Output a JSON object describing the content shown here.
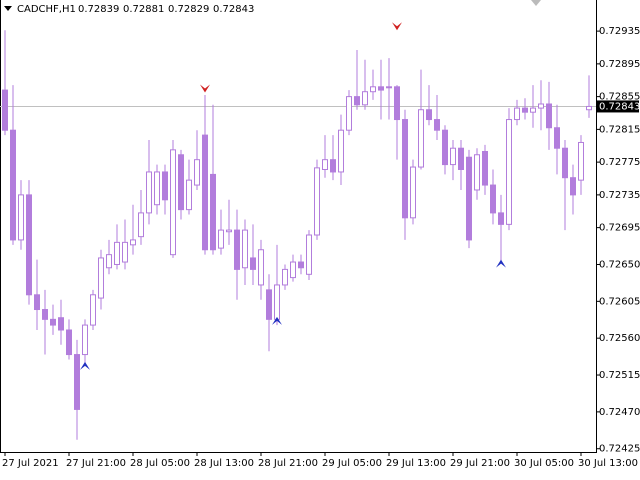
{
  "chart_data": {
    "type": "candlestick",
    "title": "CADCHF,H1",
    "header_values": [
      0.72839,
      0.72881,
      0.72829,
      0.72843
    ],
    "categories": [
      "27 Jul 2021",
      null,
      null,
      null,
      null,
      null,
      null,
      null,
      "27 Jul 21:00",
      null,
      null,
      null,
      null,
      null,
      null,
      null,
      "28 Jul 05:00",
      null,
      null,
      null,
      null,
      null,
      null,
      null,
      "28 Jul 13:00",
      null,
      null,
      null,
      null,
      null,
      null,
      null,
      "28 Jul 21:00",
      null,
      null,
      null,
      null,
      null,
      null,
      null,
      "29 Jul 05:00",
      null,
      null,
      null,
      null,
      null,
      null,
      null,
      "29 Jul 13:00",
      null,
      null,
      null,
      null,
      null,
      null,
      null,
      "29 Jul 21:00",
      null,
      null,
      null,
      null,
      null,
      null,
      null,
      "30 Jul 05:00",
      null,
      null,
      null,
      null,
      null,
      null,
      null,
      "30 Jul 13:00",
      null
    ],
    "open": [
      0.72863,
      0.72814,
      0.7268,
      0.72735,
      0.72613,
      0.72595,
      0.72583,
      0.72585,
      0.7257,
      0.7254,
      0.7254,
      0.72576,
      0.72609,
      0.72646,
      0.7265,
      0.72653,
      0.72674,
      0.72684,
      0.72713,
      0.72723,
      0.72763,
      0.72662,
      0.72784,
      0.72717,
      0.72747,
      0.72808,
      0.7276,
      0.7267,
      0.7269,
      0.72692,
      0.72646,
      0.72658,
      0.72625,
      0.72619,
      0.72583,
      0.72625,
      0.72634,
      0.72653,
      0.72638,
      0.72686,
      0.72766,
      0.72778,
      0.72763,
      0.72814,
      0.72855,
      0.72845,
      0.72861,
      0.72867,
      0.72866,
      0.72867,
      0.72827,
      0.72707,
      0.72769,
      0.72839,
      0.72827,
      0.72814,
      0.72772,
      0.72792,
      0.72781,
      0.72741,
      0.72788,
      0.72747,
      0.72713,
      0.72699,
      0.72827,
      0.72841,
      0.72836,
      0.72841,
      0.72846,
      0.72817,
      0.72792,
      0.72756,
      0.72753,
      0.72839
    ],
    "high": [
      0.72936,
      0.72869,
      0.72753,
      0.72753,
      0.72656,
      0.72619,
      0.72601,
      0.72607,
      0.72583,
      0.72558,
      0.72583,
      0.72619,
      0.72668,
      0.7268,
      0.72699,
      0.72705,
      0.72723,
      0.72741,
      0.72802,
      0.72772,
      0.72772,
      0.72802,
      0.7279,
      0.72778,
      0.72814,
      0.72857,
      0.72845,
      0.72717,
      0.72729,
      0.72717,
      0.72705,
      0.72699,
      0.7268,
      0.72638,
      0.72674,
      0.7265,
      0.72662,
      0.72662,
      0.72692,
      0.72778,
      0.72808,
      0.72808,
      0.72833,
      0.72863,
      0.72912,
      0.729,
      0.72888,
      0.729,
      0.72902,
      0.72869,
      0.72839,
      0.72778,
      0.72888,
      0.72869,
      0.72857,
      0.7282,
      0.72802,
      0.72802,
      0.7279,
      0.72792,
      0.72796,
      0.72766,
      0.72735,
      0.72841,
      0.72851,
      0.72853,
      0.72869,
      0.72875,
      0.72873,
      0.72845,
      0.72802,
      0.72772,
      0.72808,
      0.72881
    ],
    "low": [
      0.72808,
      0.72674,
      0.72668,
      0.72601,
      0.7257,
      0.7254,
      0.72564,
      0.72552,
      0.72534,
      0.72436,
      0.72528,
      0.7257,
      0.72595,
      0.72638,
      0.72644,
      0.72644,
      0.72662,
      0.72674,
      0.72699,
      0.72711,
      0.72711,
      0.72658,
      0.72705,
      0.72711,
      0.72741,
      0.72662,
      0.72662,
      0.72662,
      0.72674,
      0.72607,
      0.72625,
      0.72625,
      0.72607,
      0.72544,
      0.72576,
      0.72619,
      0.72629,
      0.72638,
      0.72631,
      0.7268,
      0.72756,
      0.72753,
      0.72747,
      0.72808,
      0.72839,
      0.72839,
      0.72851,
      0.72827,
      0.72827,
      0.72778,
      0.7268,
      0.72699,
      0.72766,
      0.7282,
      0.72802,
      0.7276,
      0.72753,
      0.72741,
      0.7267,
      0.72729,
      0.72735,
      0.72699,
      0.72653,
      0.72692,
      0.7282,
      0.72827,
      0.72817,
      0.72814,
      0.7279,
      0.7276,
      0.72692,
      0.72711,
      0.72735,
      0.72829
    ],
    "close": [
      0.72814,
      0.7268,
      0.72735,
      0.72613,
      0.72595,
      0.72583,
      0.72576,
      0.7257,
      0.7254,
      0.72473,
      0.72576,
      0.72613,
      0.72658,
      0.72662,
      0.72677,
      0.72677,
      0.7268,
      0.72713,
      0.72763,
      0.72763,
      0.72729,
      0.7279,
      0.72717,
      0.72753,
      0.72778,
      0.72668,
      0.72668,
      0.72692,
      0.72692,
      0.72644,
      0.72692,
      0.72644,
      0.72668,
      0.72583,
      0.72625,
      0.72644,
      0.72653,
      0.72646,
      0.72686,
      0.72768,
      0.72778,
      0.72763,
      0.72814,
      0.72855,
      0.72845,
      0.72861,
      0.72867,
      0.72863,
      0.72867,
      0.72827,
      0.72707,
      0.72769,
      0.72839,
      0.72827,
      0.72814,
      0.72772,
      0.72792,
      0.72766,
      0.7268,
      0.72784,
      0.72747,
      0.72713,
      0.72699,
      0.72827,
      0.72841,
      0.72836,
      0.72841,
      0.72846,
      0.72817,
      0.72792,
      0.72756,
      0.72735,
      0.72799,
      0.72843
    ],
    "color": "#b27ddc",
    "up_fill": "#ffffff",
    "bid": 0.72843,
    "markers": [
      {
        "index": 10,
        "value": 0.72531,
        "direction": "up",
        "color": "#2030c0"
      },
      {
        "index": 25,
        "value": 0.7286,
        "direction": "down",
        "color": "#d02020"
      },
      {
        "index": 34,
        "value": 0.72586,
        "direction": "up",
        "color": "#2030c0"
      },
      {
        "index": 49,
        "value": 0.72936,
        "direction": "down",
        "color": "#d02020"
      },
      {
        "index": 62,
        "value": 0.72656,
        "direction": "up",
        "color": "#2030c0"
      }
    ],
    "ylim": [
      0.72421,
      0.72973
    ],
    "yticks": [
      0.72935,
      0.72895,
      0.72855,
      0.72815,
      0.72775,
      0.72735,
      0.72695,
      {
        "value": 0.7265,
        "label": "0.72650"
      },
      0.72605,
      {
        "value": 0.7256,
        "label": "0.72560"
      },
      0.72515,
      {
        "value": 0.7247,
        "label": "0.72470"
      },
      0.72425
    ]
  }
}
